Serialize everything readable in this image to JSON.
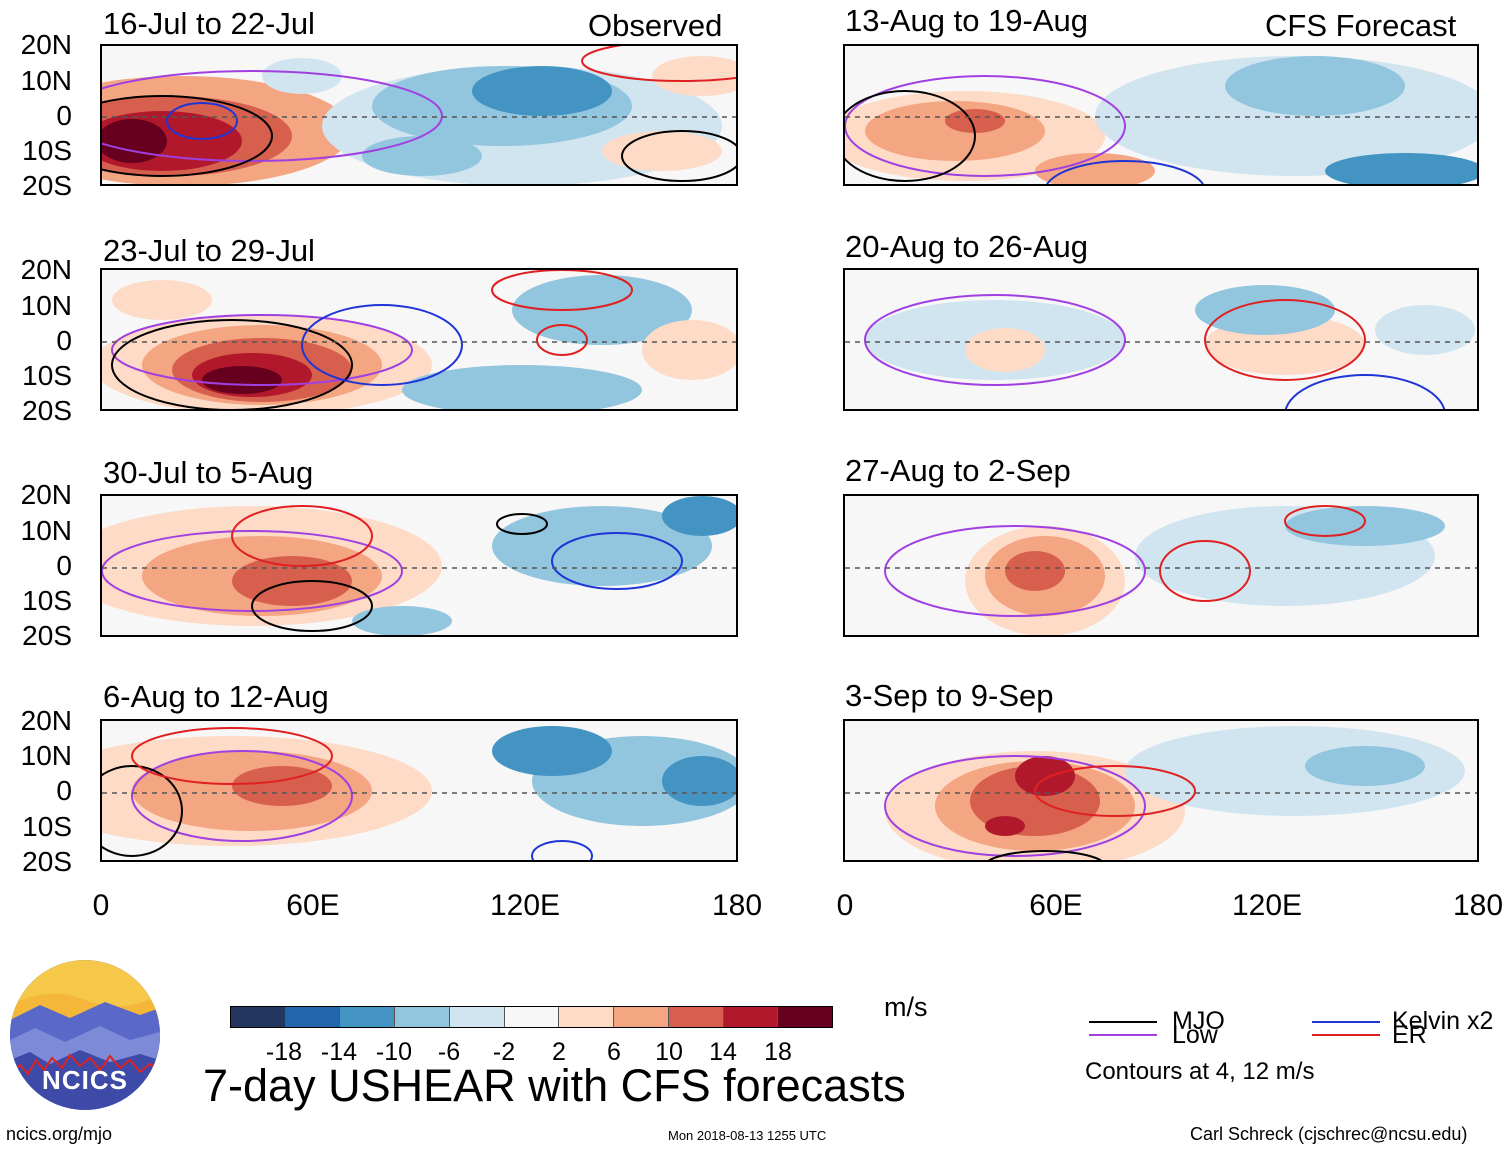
{
  "left_column": {
    "corner_label": "Observed",
    "panels": [
      {
        "title": "16-Jul to 22-Jul"
      },
      {
        "title": "23-Jul to 29-Jul"
      },
      {
        "title": "30-Jul to 5-Aug"
      },
      {
        "title": "6-Aug to 12-Aug"
      }
    ]
  },
  "right_column": {
    "corner_label": "CFS Forecast",
    "panels": [
      {
        "title": "13-Aug to 19-Aug"
      },
      {
        "title": "20-Aug to 26-Aug"
      },
      {
        "title": "27-Aug to 2-Sep"
      },
      {
        "title": "3-Sep to 9-Sep"
      }
    ]
  },
  "y_axis_labels": [
    "20N",
    "10N",
    "0",
    "10S",
    "20S"
  ],
  "x_axis_labels": [
    "0",
    "60E",
    "120E",
    "180"
  ],
  "colorbar": {
    "ticks": [
      "-18",
      "-14",
      "-10",
      "-6",
      "-2",
      "2",
      "6",
      "10",
      "14",
      "18"
    ],
    "colors": [
      "#23365f",
      "#2166ac",
      "#4393c3",
      "#92c5de",
      "#d1e5f0",
      "#f7f7f7",
      "#fddbc7",
      "#f4a582",
      "#d6604d",
      "#b2182b",
      "#67001f"
    ],
    "units": "m/s"
  },
  "title": "7-day USHEAR with CFS forecasts",
  "legend": {
    "items": [
      {
        "label": "MJO",
        "color": "#000000"
      },
      {
        "label": "Kelvin x2",
        "color": "#1f35d6"
      },
      {
        "label": "Low",
        "color": "#a040e0"
      },
      {
        "label": "ER",
        "color": "#e02020"
      }
    ],
    "note": "Contours at 4, 12 m/s"
  },
  "logo_text": "NCICS",
  "footer": {
    "url": "ncics.org/mjo",
    "timestamp": "Mon 2018-08-13 1255 UTC",
    "credit": "Carl Schreck (cjschrec@ncsu.edu)"
  }
}
